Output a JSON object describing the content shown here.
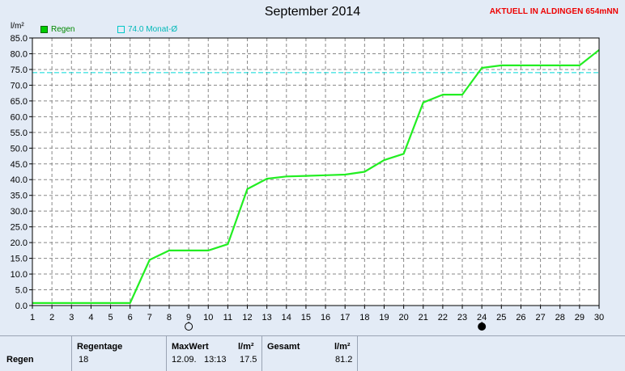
{
  "page": {
    "title": "September 2014",
    "station": "AKTUELL IN ALDINGEN 654mNN"
  },
  "chart_data": {
    "type": "line",
    "title": "September 2014",
    "ylabel": "l/m²",
    "xlim": [
      1,
      30
    ],
    "ylim": [
      0,
      85
    ],
    "y_ticks": [
      "0.0",
      "5.0",
      "10.0",
      "15.0",
      "20.0",
      "25.0",
      "30.0",
      "35.0",
      "40.0",
      "45.0",
      "50.0",
      "55.0",
      "60.0",
      "65.0",
      "70.0",
      "75.0",
      "80.0",
      "85.0"
    ],
    "x_ticks": [
      "1",
      "2",
      "3",
      "4",
      "5",
      "6",
      "7",
      "8",
      "9",
      "10",
      "11",
      "12",
      "13",
      "14",
      "15",
      "16",
      "17",
      "18",
      "19",
      "20",
      "21",
      "22",
      "23",
      "24",
      "25",
      "26",
      "27",
      "28",
      "29",
      "30"
    ],
    "grid": true,
    "series": [
      {
        "name": "Regen",
        "color": "#22ee22",
        "points": [
          [
            1,
            0.8
          ],
          [
            6,
            0.8
          ],
          [
            7,
            14.5
          ],
          [
            8,
            17.5
          ],
          [
            10,
            17.5
          ],
          [
            11,
            19.5
          ],
          [
            12,
            37
          ],
          [
            13,
            40.3
          ],
          [
            14,
            41
          ],
          [
            15,
            41.2
          ],
          [
            16,
            41.4
          ],
          [
            17,
            41.6
          ],
          [
            18,
            42.5
          ],
          [
            19,
            46.2
          ],
          [
            20,
            48.2
          ],
          [
            21,
            64.5
          ],
          [
            22,
            67
          ],
          [
            23,
            67
          ],
          [
            24,
            75.5
          ],
          [
            25,
            76.3
          ],
          [
            29,
            76.3
          ],
          [
            30,
            81.2
          ]
        ]
      }
    ],
    "reference_line": {
      "label": "74.0 Monat-Ø",
      "value": 74.0,
      "color": "#00d8d8"
    },
    "moon_markers": [
      {
        "day": 9,
        "phase": "full-moon-icon"
      },
      {
        "day": 24,
        "phase": "new-moon-icon"
      }
    ]
  },
  "legend": {
    "regen": "Regen",
    "avg": "74.0 Monat-Ø"
  },
  "table": {
    "row_label": "Regen",
    "regentage_header": "Regentage",
    "regentage_value": "18",
    "maxwert_header": "MaxWert",
    "maxwert_unit": "l/m²",
    "maxwert_date": "12.09.",
    "maxwert_time": "13:13",
    "maxwert_value": "17.5",
    "gesamt_header": "Gesamt",
    "gesamt_unit": "l/m²",
    "gesamt_value": "81.2"
  }
}
